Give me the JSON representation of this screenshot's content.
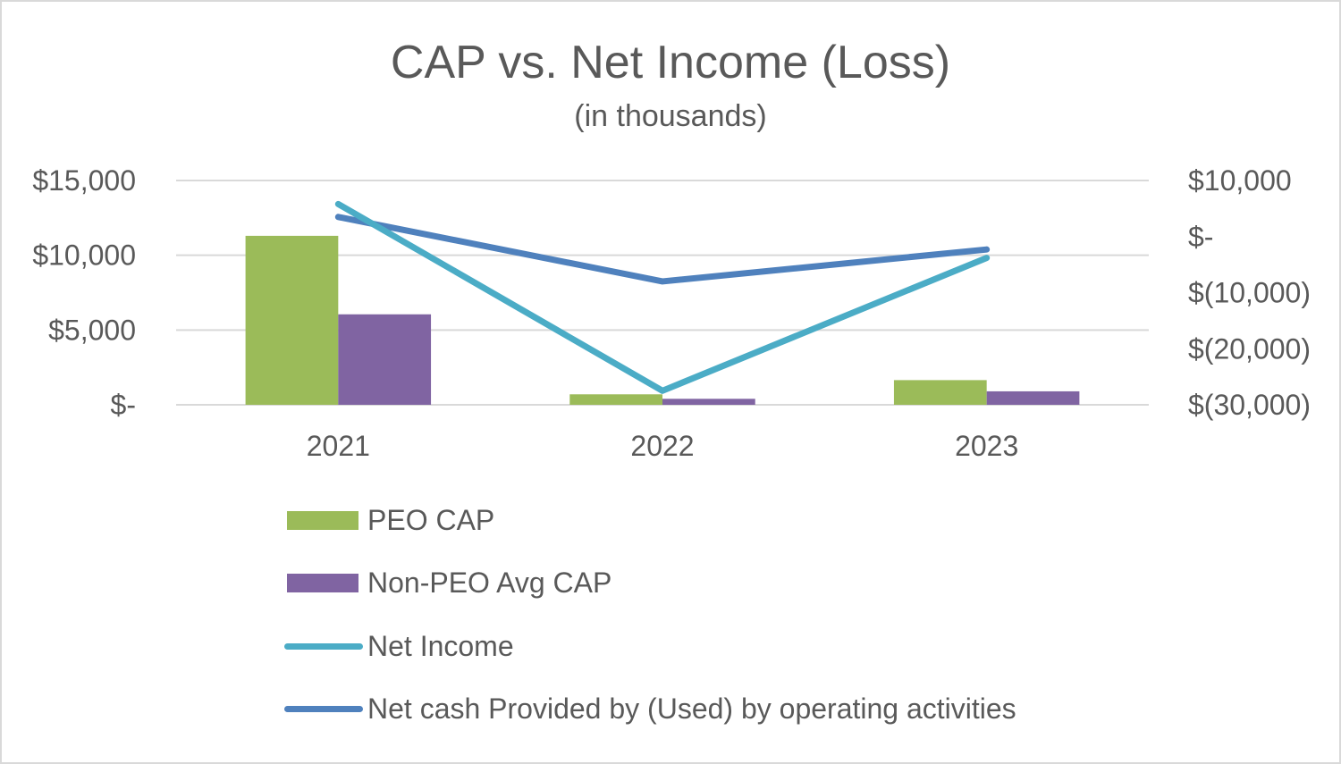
{
  "chart_data": {
    "type": "bar+line",
    "title": "CAP vs. Net Income (Loss)",
    "subtitle": "(in thousands)",
    "categories": [
      "2021",
      "2022",
      "2023"
    ],
    "y_left": {
      "ylim": [
        0,
        15000
      ],
      "ticks": [
        0,
        5000,
        10000,
        15000
      ],
      "tick_labels": [
        "$-",
        "$5,000",
        "$10,000",
        "$15,000"
      ]
    },
    "y_right": {
      "ylim": [
        -30000,
        10000
      ],
      "ticks": [
        -30000,
        -20000,
        -10000,
        0,
        10000
      ],
      "tick_labels": [
        "$(30,000)",
        "$(20,000)",
        "$(10,000)",
        "$-",
        "$10,000"
      ]
    },
    "gridlines": true,
    "legend_position": "bottom-left",
    "series": [
      {
        "name": "PEO CAP",
        "kind": "bar",
        "axis": "left",
        "color": "#9bbb59",
        "values": [
          11300,
          700,
          1650
        ]
      },
      {
        "name": "Non-PEO Avg CAP",
        "kind": "bar",
        "axis": "left",
        "color": "#8064a2",
        "values": [
          6050,
          400,
          900
        ]
      },
      {
        "name": "Net Income",
        "kind": "line",
        "axis": "right",
        "color": "#4bacc6",
        "values": [
          5800,
          -27500,
          -3800
        ]
      },
      {
        "name": "Net cash Provided by (Used) by operating activities",
        "kind": "line",
        "axis": "right",
        "color": "#4f81bd",
        "values": [
          3500,
          -8000,
          -2300
        ]
      }
    ]
  }
}
